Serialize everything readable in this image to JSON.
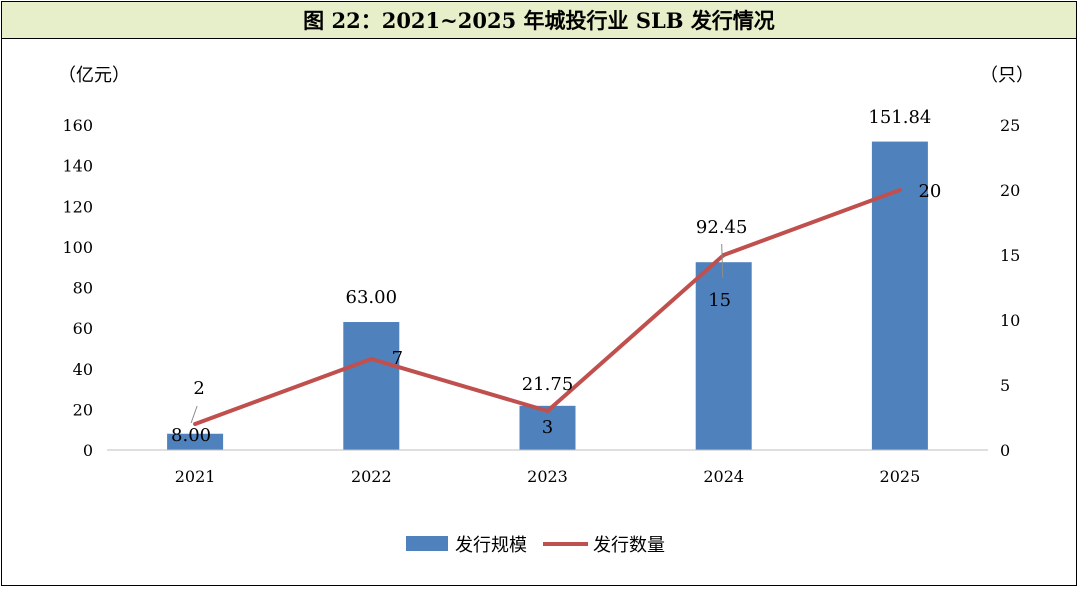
{
  "figure_title": "图 22：2021~2025 年城投行业 SLB 发行情况",
  "chart_data": {
    "type": "bar",
    "categories": [
      "2021",
      "2022",
      "2023",
      "2024",
      "2025"
    ],
    "series": [
      {
        "name": "发行规模",
        "kind": "bar",
        "axis": "left",
        "color": "#4f81bd",
        "values": [
          8.0,
          63.0,
          21.75,
          92.45,
          151.84
        ],
        "labels": [
          "8.00",
          "63.00",
          "21.75",
          "92.45",
          "151.84"
        ]
      },
      {
        "name": "发行数量",
        "kind": "line",
        "axis": "right",
        "color": "#c0504d",
        "values": [
          2,
          7,
          3,
          15,
          20
        ],
        "labels": [
          "2",
          "7",
          "3",
          "15",
          "20"
        ]
      }
    ],
    "y_left": {
      "unit": "（亿元）",
      "range": [
        0,
        160
      ],
      "ticks": [
        "0",
        "20",
        "40",
        "60",
        "80",
        "100",
        "120",
        "140",
        "160"
      ]
    },
    "y_right": {
      "unit": "（只）",
      "range": [
        0,
        25
      ],
      "ticks": [
        "0",
        "5",
        "10",
        "15",
        "20",
        "25"
      ]
    },
    "grid": false,
    "legend": "bottom-center"
  }
}
